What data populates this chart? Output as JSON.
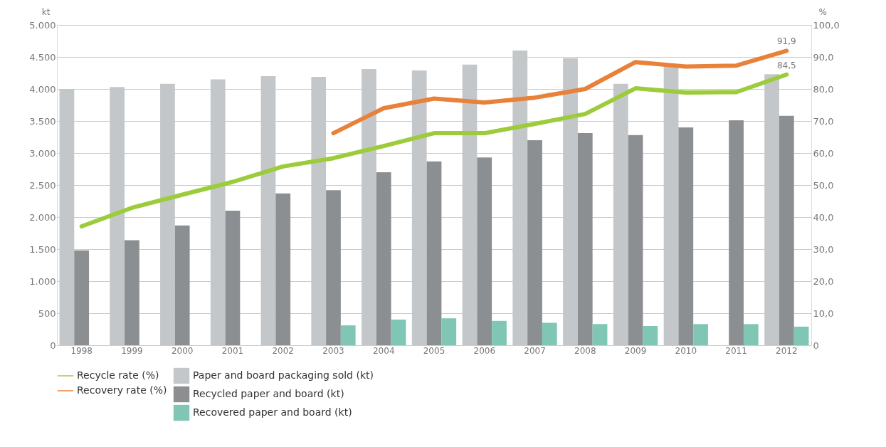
{
  "chart_data": {
    "type": "bar",
    "categories": [
      "1998",
      "1999",
      "2000",
      "2001",
      "2002",
      "2003",
      "2004",
      "2005",
      "2006",
      "2007",
      "2008",
      "2009",
      "2010",
      "2011",
      "2012"
    ],
    "ylabel": "kt",
    "y2label": "%",
    "series": [
      {
        "name": "Paper and board packaging sold (kt)",
        "color": "#c4c7ca",
        "values": [
          4000,
          4030,
          4080,
          4150,
          4200,
          4190,
          4310,
          4290,
          4380,
          4600,
          4480,
          4080,
          4370,
          null,
          4230
        ]
      },
      {
        "name": "Recycled paper and board (kt)",
        "color": "#8c8f92",
        "values": [
          1480,
          1640,
          1870,
          2100,
          2370,
          2420,
          2700,
          2870,
          2930,
          3200,
          3310,
          3280,
          3400,
          3510,
          3580
        ]
      },
      {
        "name": "Recovered paper and board (kt)",
        "color": "#7fc6b4",
        "values": [
          null,
          null,
          null,
          null,
          null,
          310,
          400,
          420,
          380,
          350,
          330,
          300,
          330,
          330,
          290
        ]
      },
      {
        "name": "Recycle rate (%)",
        "type": "line",
        "axis": "y2",
        "color": "#9ccc3c",
        "values": [
          37.1,
          42.9,
          47,
          51,
          55.8,
          58.4,
          62.2,
          66.2,
          66.2,
          69.1,
          72.2,
          80.2,
          78.9,
          79,
          84.5
        ],
        "value_labels": [
          null,
          null,
          null,
          null,
          null,
          null,
          null,
          null,
          null,
          null,
          null,
          null,
          null,
          null,
          "84,5"
        ]
      },
      {
        "name": "Recovery rate (%)",
        "type": "line",
        "axis": "y2",
        "color": "#e8823a",
        "values": [
          null,
          null,
          null,
          null,
          null,
          66.2,
          74,
          77,
          75.8,
          77.3,
          80,
          88.4,
          87,
          87.3,
          91.9
        ],
        "value_labels": [
          null,
          null,
          null,
          null,
          null,
          null,
          null,
          null,
          null,
          null,
          null,
          null,
          null,
          null,
          "91,9"
        ]
      }
    ],
    "ylim": [
      0,
      5000
    ],
    "yticks": [
      0,
      {
        "value": 500,
        "label": "500"
      },
      {
        "value": 1000,
        "label": "1.000"
      },
      {
        "value": 1500,
        "label": "1.500"
      },
      {
        "value": 2000,
        "label": "2.000"
      },
      {
        "value": 2500,
        "label": "2.500"
      },
      {
        "value": 3000,
        "label": "3.000"
      },
      {
        "value": 3500,
        "label": "3.500"
      },
      {
        "value": 4000,
        "label": "4.000"
      },
      {
        "value": 4500,
        "label": "4.500"
      },
      {
        "value": 5000,
        "label": "5.000"
      }
    ],
    "y2lim": [
      0,
      100
    ],
    "y2ticks": [
      0,
      {
        "value": 10,
        "label": "10,0"
      },
      {
        "value": 20,
        "label": "20,0"
      },
      {
        "value": 30,
        "label": "30,0"
      },
      {
        "value": 40,
        "label": "40,0"
      },
      {
        "value": 50,
        "label": "50,0"
      },
      {
        "value": 60,
        "label": "60,0"
      },
      {
        "value": 70,
        "label": "70,0"
      },
      {
        "value": 80,
        "label": "80,0"
      },
      {
        "value": 90,
        "label": "90,0"
      },
      {
        "value": 100,
        "label": "100,0"
      }
    ],
    "grid": "y",
    "legend": "bottom",
    "line_style": "solid",
    "marker": "none"
  }
}
